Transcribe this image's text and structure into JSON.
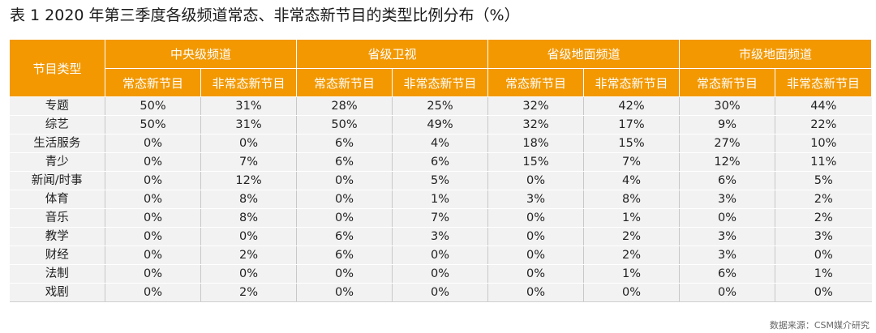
{
  "title": "表 1  2020 年第三季度各级频道常态、非常态新节目的类型比例分布（%）",
  "header": {
    "row_label": "节目类型",
    "groups": [
      "中央级频道",
      "省级卫视",
      "省级地面频道",
      "市级地面频道"
    ],
    "sub": [
      "常态新节目",
      "非常态新节目"
    ]
  },
  "rows": [
    {
      "type": "专题",
      "values": [
        "50%",
        "31%",
        "28%",
        "25%",
        "32%",
        "42%",
        "30%",
        "44%"
      ]
    },
    {
      "type": "综艺",
      "values": [
        "50%",
        "31%",
        "50%",
        "49%",
        "32%",
        "17%",
        "9%",
        "22%"
      ]
    },
    {
      "type": "生活服务",
      "values": [
        "0%",
        "0%",
        "6%",
        "4%",
        "18%",
        "15%",
        "27%",
        "10%"
      ]
    },
    {
      "type": "青少",
      "values": [
        "0%",
        "7%",
        "6%",
        "6%",
        "15%",
        "7%",
        "12%",
        "11%"
      ]
    },
    {
      "type": "新闻/时事",
      "values": [
        "0%",
        "12%",
        "0%",
        "5%",
        "0%",
        "4%",
        "6%",
        "5%"
      ]
    },
    {
      "type": "体育",
      "values": [
        "0%",
        "8%",
        "0%",
        "1%",
        "3%",
        "8%",
        "3%",
        "2%"
      ]
    },
    {
      "type": "音乐",
      "values": [
        "0%",
        "8%",
        "0%",
        "7%",
        "0%",
        "1%",
        "0%",
        "2%"
      ]
    },
    {
      "type": "教学",
      "values": [
        "0%",
        "0%",
        "6%",
        "3%",
        "0%",
        "2%",
        "3%",
        "3%"
      ]
    },
    {
      "type": "财经",
      "values": [
        "0%",
        "2%",
        "6%",
        "0%",
        "0%",
        "2%",
        "3%",
        "0%"
      ]
    },
    {
      "type": "法制",
      "values": [
        "0%",
        "0%",
        "0%",
        "0%",
        "0%",
        "1%",
        "6%",
        "1%"
      ]
    },
    {
      "type": "戏剧",
      "values": [
        "0%",
        "2%",
        "0%",
        "0%",
        "0%",
        "0%",
        "0%",
        "0%"
      ]
    }
  ],
  "source": "数据来源：CSM媒介研究",
  "colors": {
    "header": "#f39800",
    "body": "#f2f2f2"
  }
}
